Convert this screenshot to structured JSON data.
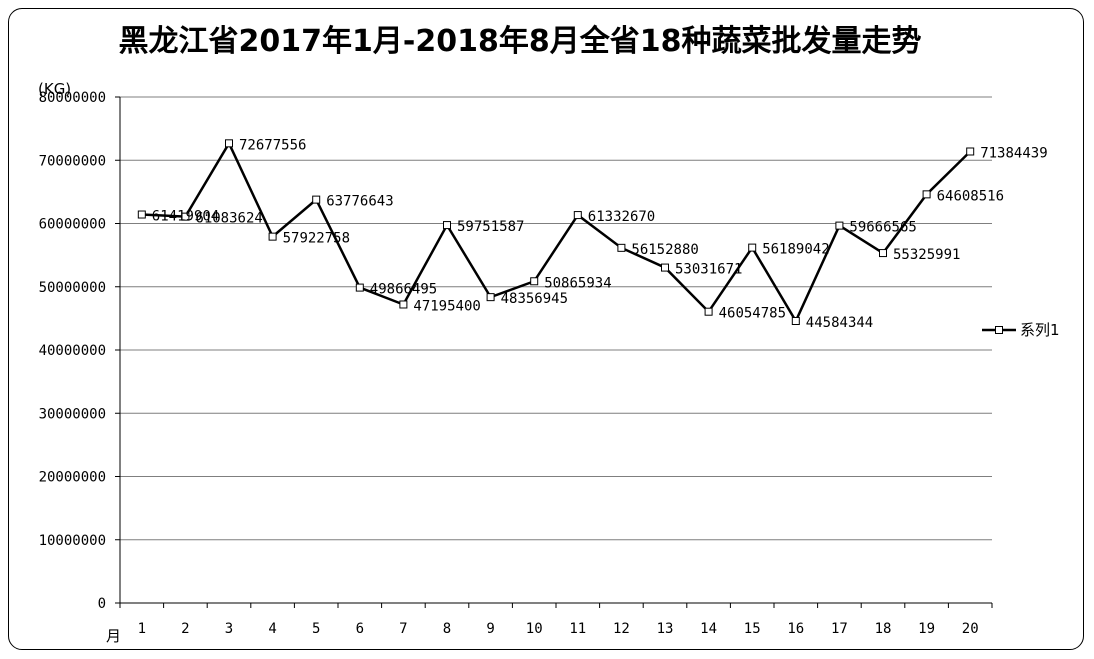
{
  "chart_data": {
    "type": "line",
    "title": "黑龙江省2017年1月-2018年8月全省18种蔬菜批发量走势",
    "ylabel": "(KG)",
    "xlabel": "月",
    "ylim": [
      0,
      80000000
    ],
    "yticks": [
      "0",
      "10000000",
      "20000000",
      "30000000",
      "40000000",
      "50000000",
      "60000000",
      "70000000",
      "80000000"
    ],
    "categories": [
      "1",
      "2",
      "3",
      "4",
      "5",
      "6",
      "7",
      "8",
      "9",
      "10",
      "11",
      "12",
      "13",
      "14",
      "15",
      "16",
      "17",
      "18",
      "19",
      "20"
    ],
    "series": [
      {
        "name": "系列1",
        "values": [
          61419904,
          61083624,
          72677556,
          57922758,
          63776643,
          49866495,
          47195400,
          59751587,
          48356945,
          50865934,
          61332670,
          56152880,
          53031671,
          46054785,
          56189042,
          44584344,
          59666565,
          55325991,
          64608516,
          71384439
        ],
        "labels": [
          "61419904",
          "61083624",
          "72677556",
          "57922758",
          "63776643",
          "49866495",
          "47195400",
          "59751587",
          "48356945",
          "50865934",
          "61332670",
          "56152880",
          "53031671",
          "46054785",
          "56189042",
          "44584344",
          "59666565",
          "55325991",
          "64608516",
          "71384439"
        ]
      }
    ],
    "grid": true,
    "legend": "right",
    "colors": {
      "line": "#000000",
      "grid": "#7f7f7f",
      "marker_fill": "#ffffff"
    }
  }
}
